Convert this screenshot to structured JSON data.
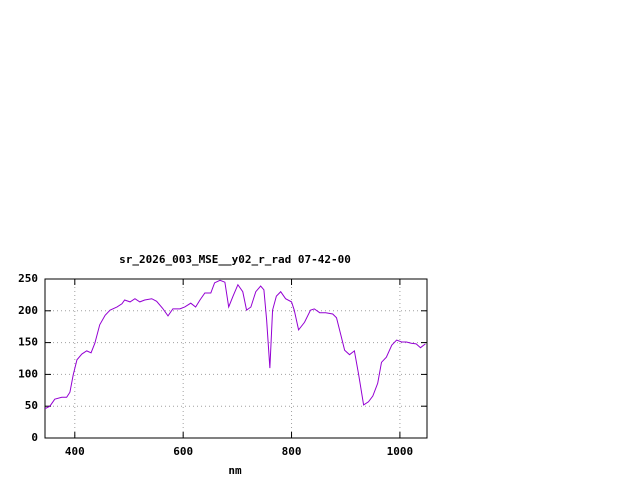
{
  "chart_data": {
    "type": "line",
    "title": "sr_2026_003_MSE__y02_r_rad 07-42-00",
    "x_label": "nm",
    "x": [
      345,
      354,
      363,
      376,
      385,
      391,
      397,
      404,
      413,
      422,
      430,
      437,
      446,
      456,
      465,
      478,
      487,
      492,
      502,
      511,
      520,
      529,
      542,
      551,
      562,
      572,
      581,
      594,
      603,
      614,
      623,
      631,
      640,
      651,
      658,
      668,
      677,
      684,
      692,
      701,
      710,
      717,
      725,
      734,
      743,
      749,
      754,
      760,
      765,
      772,
      780,
      789,
      800,
      805,
      813,
      824,
      835,
      842,
      852,
      863,
      876,
      883,
      891,
      898,
      907,
      916,
      924,
      933,
      942,
      950,
      959,
      966,
      975,
      985,
      994,
      1003,
      1012,
      1021,
      1030,
      1038,
      1047
    ],
    "values": [
      46,
      50,
      61,
      64,
      64,
      72,
      99,
      123,
      132,
      137,
      134,
      149,
      178,
      193,
      201,
      206,
      211,
      217,
      214,
      219,
      214,
      217,
      219,
      215,
      204,
      192,
      203,
      203,
      206,
      212,
      206,
      217,
      228,
      228,
      244,
      248,
      245,
      206,
      223,
      241,
      230,
      201,
      206,
      230,
      239,
      233,
      186,
      110,
      201,
      223,
      230,
      219,
      214,
      201,
      170,
      182,
      201,
      203,
      197,
      197,
      195,
      189,
      162,
      138,
      131,
      137,
      99,
      52,
      57,
      66,
      86,
      119,
      127,
      146,
      154,
      151,
      151,
      149,
      148,
      142,
      148
    ],
    "color": "#9400d3",
    "xlim": [
      345,
      1050
    ],
    "ylim": [
      0,
      250
    ],
    "xticks": [
      400,
      600,
      800,
      1000
    ],
    "yticks": [
      0,
      50,
      100,
      150,
      200,
      250
    ],
    "grid": true
  }
}
